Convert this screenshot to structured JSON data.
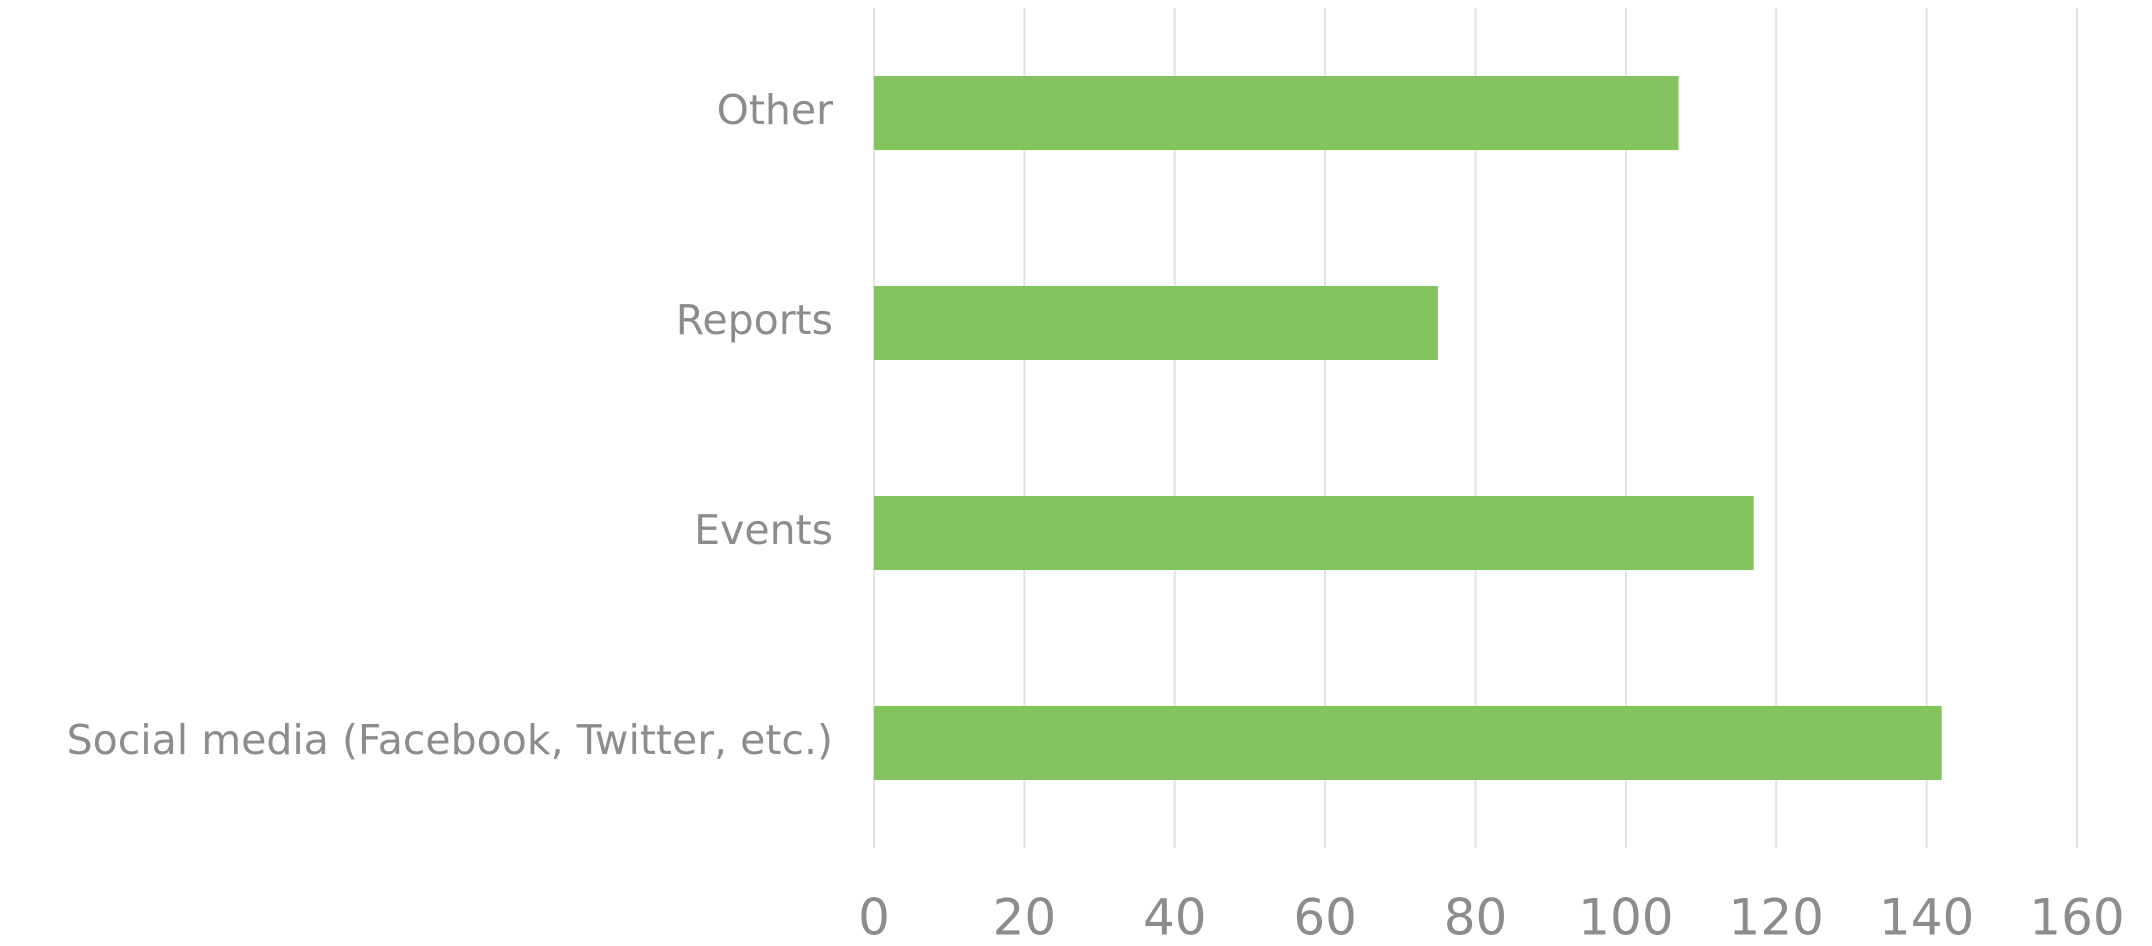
{
  "chart_data": {
    "type": "bar",
    "orientation": "horizontal",
    "categories": [
      "Social media (Facebook, Twitter, etc.)",
      "Events",
      "Reports",
      "Other"
    ],
    "values": [
      142,
      117,
      75,
      107
    ],
    "color": "#84c45f",
    "xlim": [
      0,
      160
    ],
    "xticks": [
      0,
      20,
      40,
      60,
      80,
      100,
      120,
      140,
      160
    ],
    "grid": true
  }
}
